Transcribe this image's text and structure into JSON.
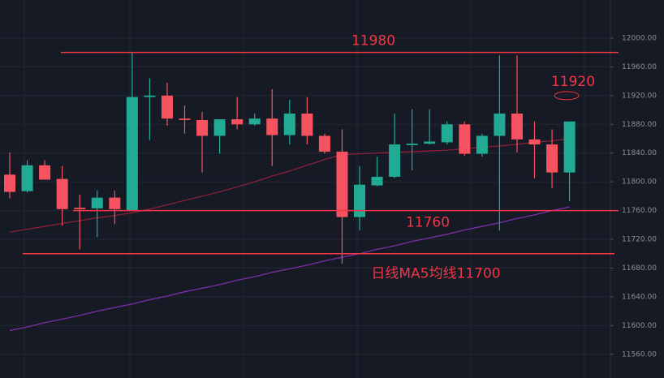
{
  "chart_data": {
    "type": "candlestick",
    "open": [
      11810,
      11787,
      11823,
      11804,
      11764,
      11763,
      11778,
      11760,
      11918,
      11920,
      11888,
      11886,
      11864,
      11887,
      11880,
      11888,
      11865,
      11895,
      11864,
      11842,
      11751,
      11795,
      11807,
      11851,
      11853,
      11855,
      11880,
      11839,
      11864,
      11895,
      11859,
      11852,
      11813
    ],
    "high": [
      11841,
      11830,
      11830,
      11822,
      11782,
      11788,
      11788,
      11980,
      11944,
      11938,
      11906,
      11897,
      11887,
      11918,
      11895,
      11929,
      11914,
      11918,
      11867,
      11873,
      11822,
      11835,
      11895,
      11901,
      11901,
      11884,
      11884,
      11867,
      11976,
      11976,
      11884,
      11873,
      11884
    ],
    "low": [
      11777,
      11785,
      11803,
      11739,
      11706,
      11723,
      11741,
      11760,
      11858,
      11878,
      11867,
      11813,
      11839,
      11873,
      11878,
      11822,
      11852,
      11852,
      11839,
      11686,
      11732,
      11794,
      11805,
      11816,
      11852,
      11852,
      11836,
      11835,
      11732,
      11841,
      11805,
      11791,
      11773
    ],
    "close": [
      11786,
      11823,
      11803,
      11762,
      11762,
      11778,
      11762,
      11918,
      11920,
      11888,
      11886,
      11864,
      11887,
      11880,
      11888,
      11865,
      11895,
      11864,
      11842,
      11751,
      11796,
      11807,
      11852,
      11853,
      11856,
      11880,
      11839,
      11864,
      11895,
      11859,
      11852,
      11813,
      11884
    ],
    "up_color": "#22ab94",
    "down_color": "#f7525f",
    "overlays": [
      {
        "color": "#7b2fa8",
        "values": [
          11593,
          11598,
          11604,
          11609,
          11614,
          11620,
          11625,
          11630,
          11636,
          11641,
          11647,
          11652,
          11657,
          11663,
          11668,
          11674,
          11679,
          11684,
          11690,
          11695,
          11700,
          11706,
          11711,
          11717,
          11722,
          11727,
          11733,
          11738,
          11743,
          11749,
          11754,
          11760,
          11765
        ]
      },
      {
        "color": "#8a2038",
        "values": [
          11730,
          11734,
          11738,
          11742,
          11746,
          11750,
          11753,
          11757,
          11762,
          11768,
          11774,
          11780,
          11786,
          11793,
          11800,
          11808,
          11815,
          11823,
          11831,
          11838,
          11839,
          11840,
          11841,
          11842,
          11843,
          11844,
          11846,
          11848,
          11850,
          11852,
          11855,
          11857,
          11860
        ]
      }
    ],
    "ylim": [
      11527,
      12053
    ],
    "yticks": [
      {
        "value": 11560,
        "label": "11560.00"
      },
      {
        "value": 11600,
        "label": "11600.00"
      },
      {
        "value": 11640,
        "label": "11640.00"
      },
      {
        "value": 11680,
        "label": "11680.00"
      },
      {
        "value": 11720,
        "label": "11720.00"
      },
      {
        "value": 11760,
        "label": "11760.00"
      },
      {
        "value": 11800,
        "label": "11800.00"
      },
      {
        "value": 11840,
        "label": "11840.00"
      },
      {
        "value": 11880,
        "label": "11880.00"
      },
      {
        "value": 11920,
        "label": "11920.00"
      },
      {
        "value": 11960,
        "label": "11960.00"
      },
      {
        "value": 12000,
        "label": "12000.00"
      }
    ],
    "grid": true,
    "annotations": [
      {
        "label": "11980",
        "value": 11980
      },
      {
        "label": "11760",
        "value": 11760
      },
      {
        "label": "日线MA5均线11700",
        "value": 11700
      },
      {
        "label": "11920",
        "value": 11920
      }
    ],
    "annotation_color": "#f23645"
  }
}
